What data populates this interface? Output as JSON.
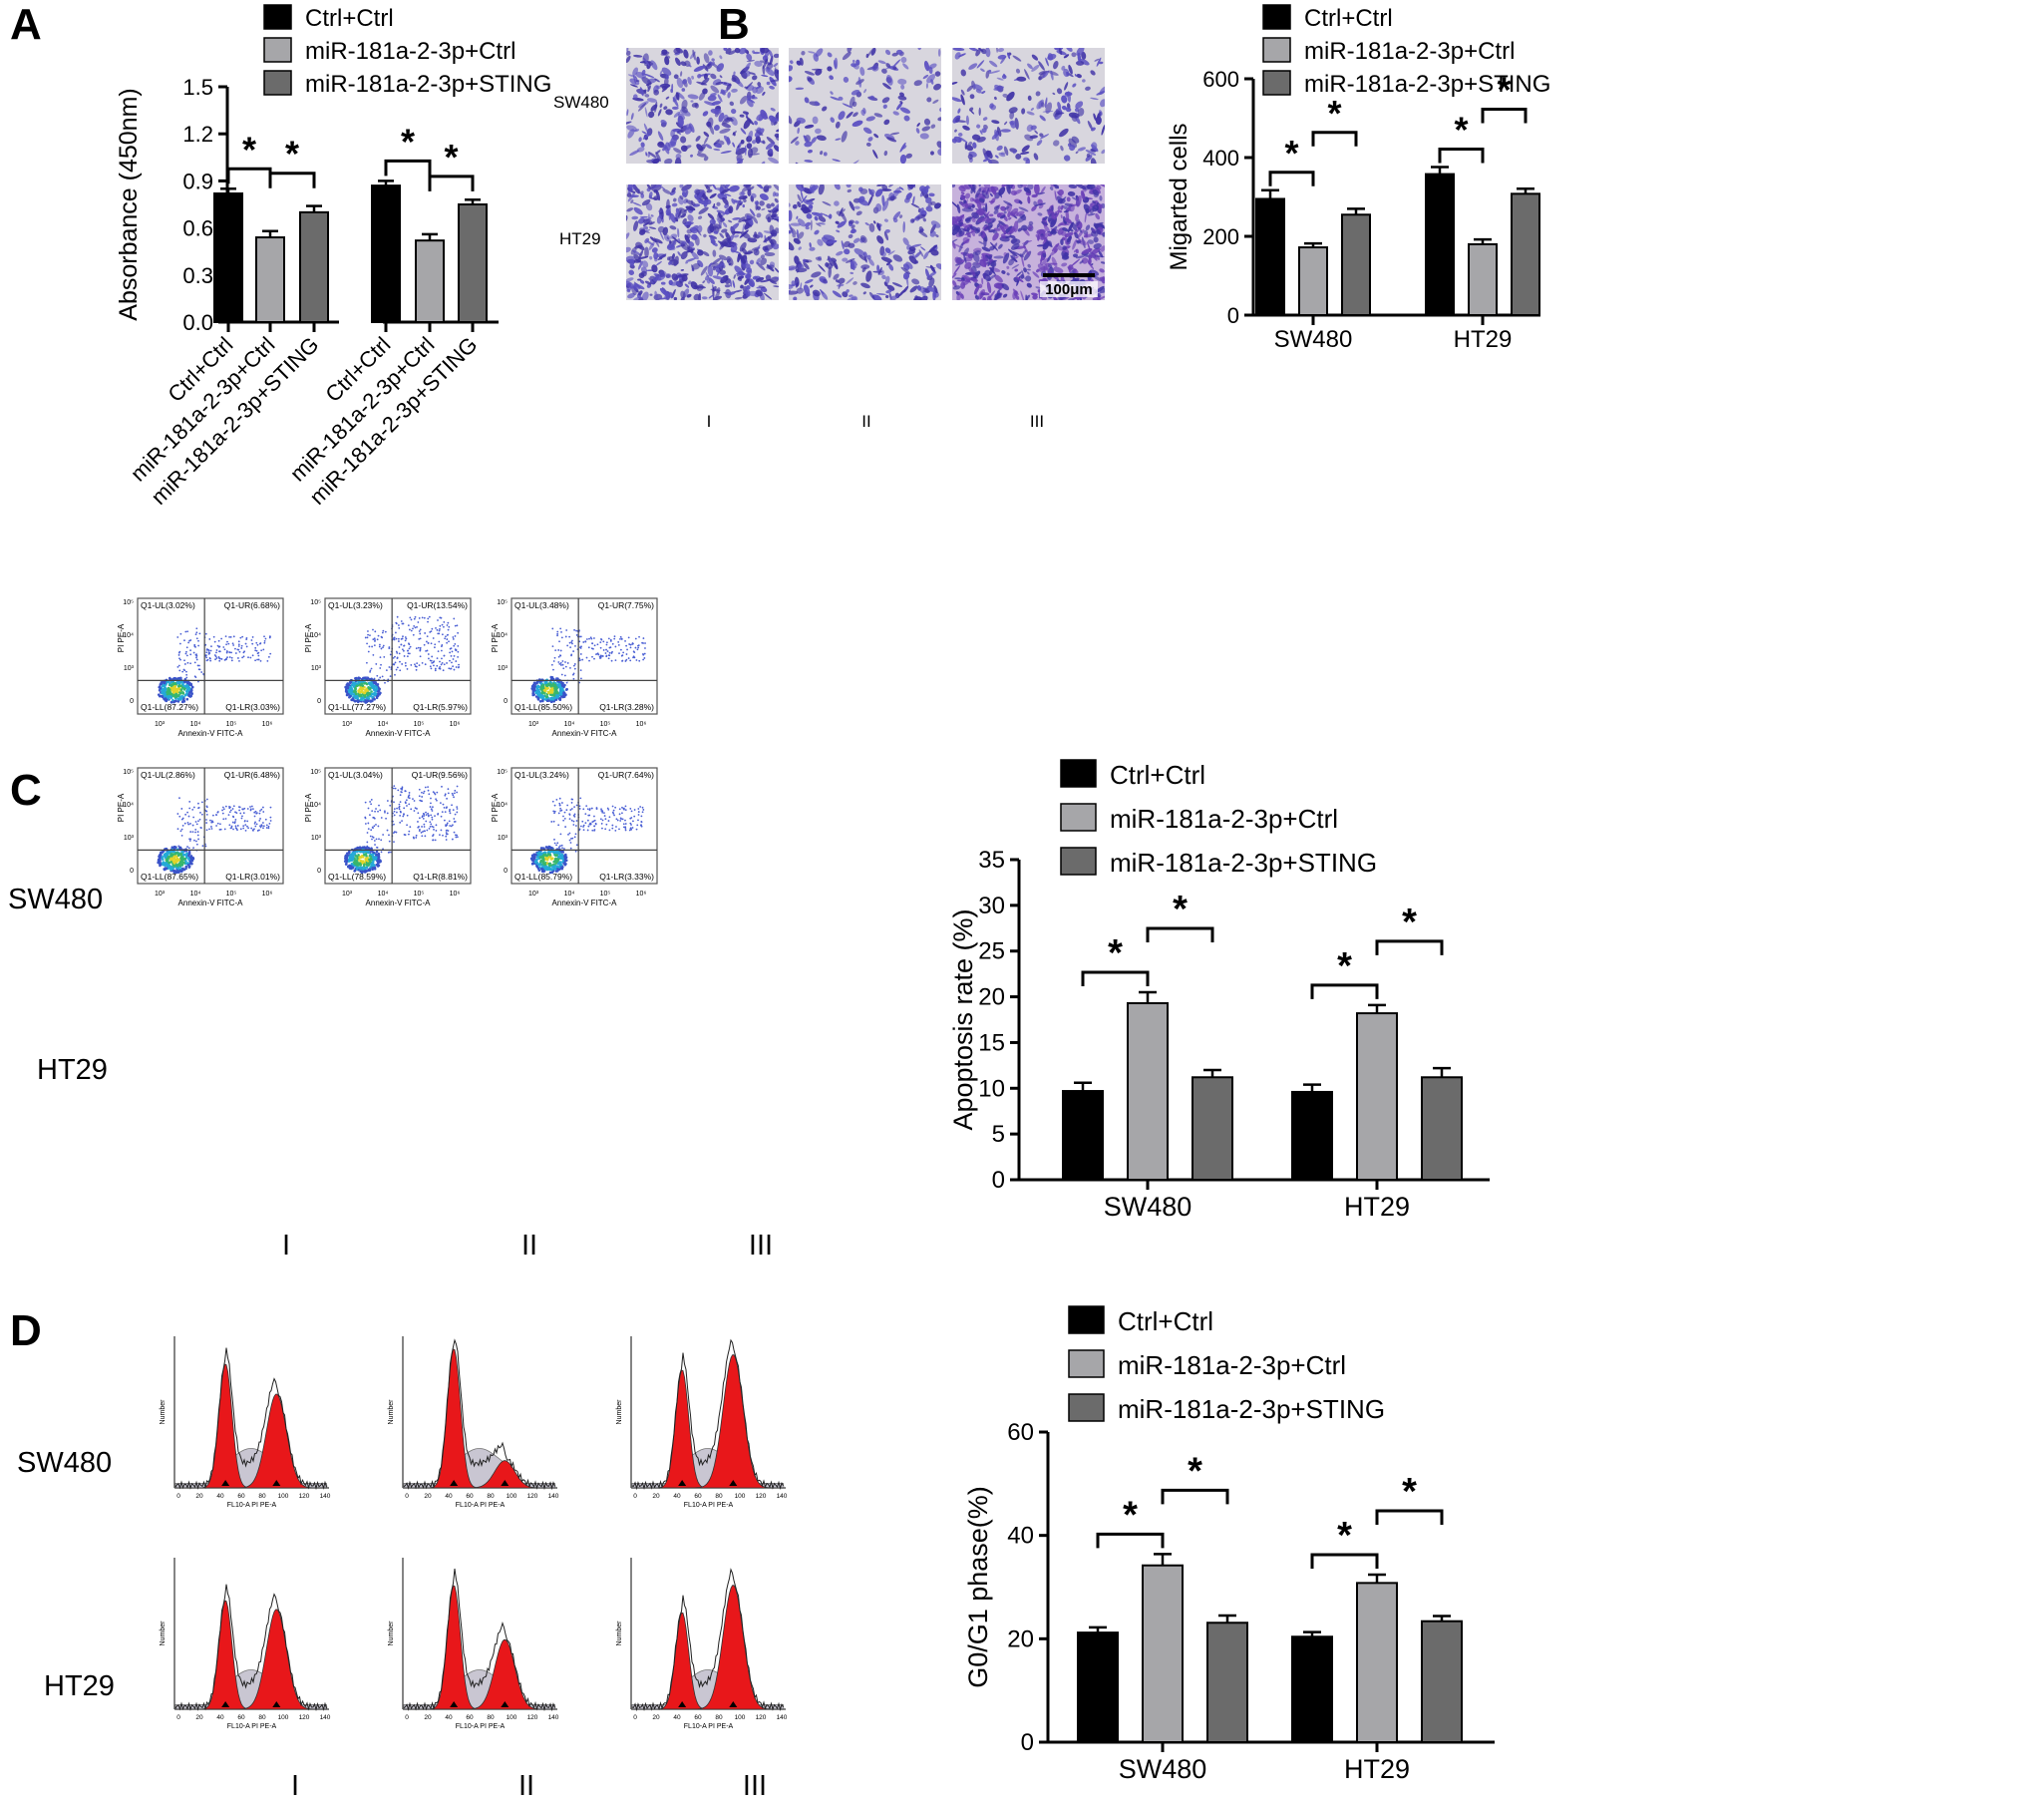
{
  "panels": {
    "A": "A",
    "B": "B",
    "C": "C",
    "D": "D"
  },
  "colors": {
    "ctrl": "#000000",
    "mir": "#a6a6a9",
    "sting": "#6b6b6b",
    "stain": "#3f32a6",
    "stain_bg": "#d8d6de",
    "flow_red": "#e8171a",
    "flow_gray": "#c9c6d2"
  },
  "legend": [
    "Ctrl+Ctrl",
    "miR-181a-2-3p+Ctrl",
    "miR-181a-2-3p+STING"
  ],
  "significance_mark": "*",
  "groups": {
    "roman": [
      "I",
      "II",
      "III"
    ],
    "rows": [
      "SW480",
      "HT29"
    ]
  },
  "micrograph": {
    "scale_bar": "100μm"
  },
  "flow": {
    "y_label": "PI PE-A",
    "x_label": "Annexin-V FITC-A",
    "y_ticks": [
      "10⁵",
      "10⁴",
      "10³",
      "0"
    ],
    "x_ticks": [
      "10³",
      "10⁴",
      "10⁵",
      "10⁶"
    ],
    "quadrants": [
      [
        {
          "ul": "Q1-UL(3.02%)",
          "ur": "Q1-UR(6.68%)",
          "ll": "Q1-LL(87.27%)",
          "lr": "Q1-LR(3.03%)"
        },
        {
          "ul": "Q1-UL(3.23%)",
          "ur": "Q1-UR(13.54%)",
          "ll": "Q1-LL(77.27%)",
          "lr": "Q1-LR(5.97%)"
        },
        {
          "ul": "Q1-UL(3.48%)",
          "ur": "Q1-UR(7.75%)",
          "ll": "Q1-LL(85.50%)",
          "lr": "Q1-LR(3.28%)"
        }
      ],
      [
        {
          "ul": "Q1-UL(2.86%)",
          "ur": "Q1-UR(6.48%)",
          "ll": "Q1-LL(87.65%)",
          "lr": "Q1-LR(3.01%)"
        },
        {
          "ul": "Q1-UL(3.04%)",
          "ur": "Q1-UR(9.56%)",
          "ll": "Q1-LL(78.59%)",
          "lr": "Q1-LR(8.81%)"
        },
        {
          "ul": "Q1-UL(3.24%)",
          "ur": "Q1-UR(7.64%)",
          "ll": "Q1-LL(85.79%)",
          "lr": "Q1-LR(3.33%)"
        }
      ]
    ]
  },
  "histogram": {
    "x_label": "FL10-A PI PE-A",
    "y_label": "Number",
    "x_ticks": [
      "0",
      "20",
      "40",
      "60",
      "80",
      "100",
      "120",
      "140"
    ],
    "peaks": [
      [
        {
          "g1": 0.82,
          "g2": 0.62
        },
        {
          "g1": 0.92,
          "g2": 0.18
        },
        {
          "g1": 0.78,
          "g2": 0.88
        }
      ],
      [
        {
          "g1": 0.72,
          "g2": 0.66
        },
        {
          "g1": 0.82,
          "g2": 0.46
        },
        {
          "g1": 0.64,
          "g2": 0.82
        }
      ]
    ]
  },
  "chart_data": [
    {
      "type": "bar",
      "panel": "A",
      "ylabel": "Absorbance (450nm)",
      "ylim": [
        0,
        1.5
      ],
      "yticks": [
        "0.0",
        "0.3",
        "0.6",
        "0.9",
        "1.2",
        "1.5"
      ],
      "categories": [
        "Ctrl+Ctrl",
        "miR-181a-2-3p+Ctrl",
        "miR-181a-2-3p+STING",
        "Ctrl+Ctrl",
        "miR-181a-2-3p+Ctrl",
        "miR-181a-2-3p+STING"
      ],
      "values": [
        0.82,
        0.54,
        0.7,
        0.87,
        0.52,
        0.75
      ],
      "errors": [
        0.03,
        0.04,
        0.04,
        0.03,
        0.04,
        0.03
      ]
    },
    {
      "type": "bar",
      "panel": "B",
      "ylabel": "Migarted cells",
      "ylim": [
        0,
        600
      ],
      "yticks": [
        "0",
        "200",
        "400",
        "600"
      ],
      "categories": [
        "SW480",
        "HT29"
      ],
      "series": [
        {
          "name": "Ctrl+Ctrl",
          "values": [
            295,
            358
          ],
          "errors": [
            22,
            18
          ]
        },
        {
          "name": "miR-181a-2-3p+Ctrl",
          "values": [
            172,
            180
          ],
          "errors": [
            10,
            12
          ]
        },
        {
          "name": "miR-181a-2-3p+STING",
          "values": [
            255,
            308
          ],
          "errors": [
            15,
            13
          ]
        }
      ]
    },
    {
      "type": "bar",
      "panel": "C",
      "ylabel": "Apoptosis rate (%)",
      "ylim": [
        0,
        35
      ],
      "yticks": [
        "0",
        "5",
        "10",
        "15",
        "20",
        "25",
        "30",
        "35"
      ],
      "categories": [
        "SW480",
        "HT29"
      ],
      "series": [
        {
          "name": "Ctrl+Ctrl",
          "values": [
            9.7,
            9.6
          ],
          "errors": [
            0.9,
            0.8
          ]
        },
        {
          "name": "miR-181a-2-3p+Ctrl",
          "values": [
            19.3,
            18.2
          ],
          "errors": [
            1.2,
            0.9
          ]
        },
        {
          "name": "miR-181a-2-3p+STING",
          "values": [
            11.2,
            11.2
          ],
          "errors": [
            0.8,
            1.0
          ]
        }
      ]
    },
    {
      "type": "bar",
      "panel": "D",
      "ylabel": "G0/G1 phase(%)",
      "ylim": [
        0,
        60
      ],
      "yticks": [
        "0",
        "20",
        "40",
        "60"
      ],
      "categories": [
        "SW480",
        "HT29"
      ],
      "series": [
        {
          "name": "Ctrl+Ctrl",
          "values": [
            21.2,
            20.4
          ],
          "errors": [
            1.0,
            0.9
          ]
        },
        {
          "name": "miR-181a-2-3p+Ctrl",
          "values": [
            34.2,
            30.8
          ],
          "errors": [
            2.2,
            1.6
          ]
        },
        {
          "name": "miR-181a-2-3p+STING",
          "values": [
            23.1,
            23.4
          ],
          "errors": [
            1.4,
            1.0
          ]
        }
      ]
    }
  ]
}
